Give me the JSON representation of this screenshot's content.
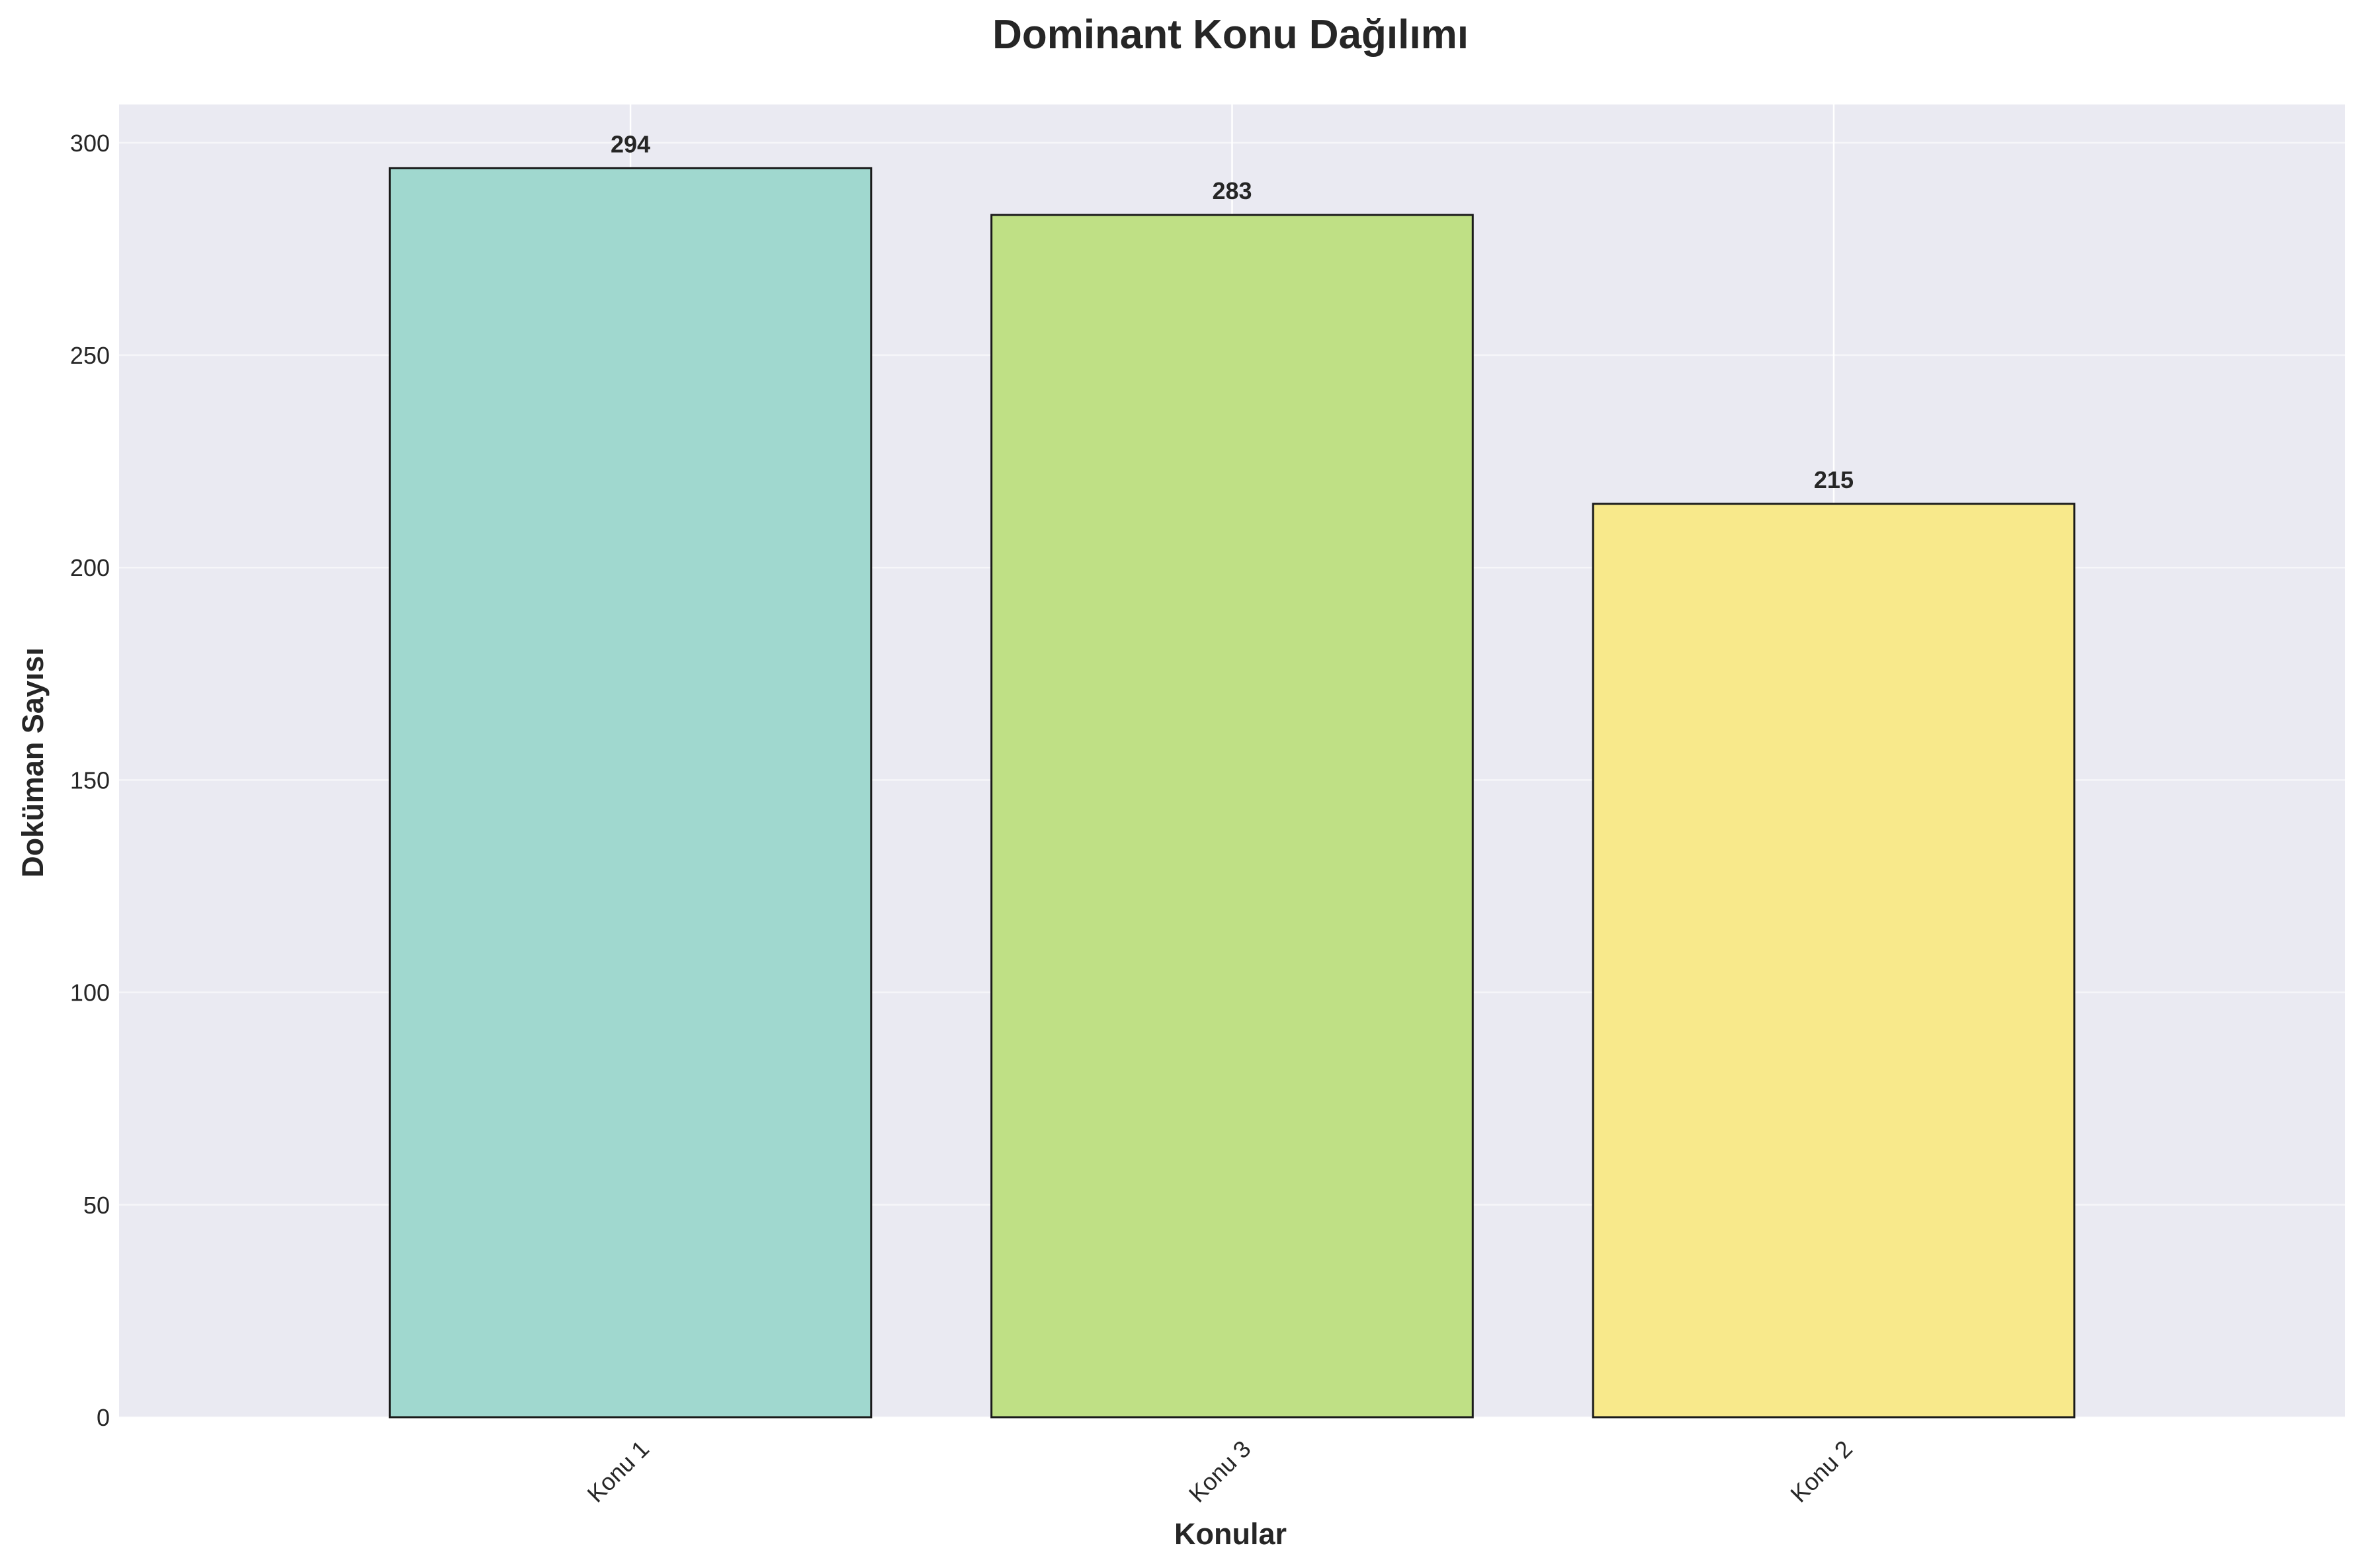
{
  "chart_data": {
    "type": "bar",
    "title": "Dominant Konu Dağılımı",
    "xlabel": "Konular",
    "ylabel": "Doküman Sayısı",
    "categories": [
      "Konu 1",
      "Konu 3",
      "Konu 2"
    ],
    "values": [
      294,
      283,
      215
    ],
    "value_labels": [
      "294",
      "283",
      "215"
    ],
    "ylim": [
      0,
      309
    ],
    "yticks": [
      0,
      50,
      100,
      150,
      200,
      250,
      300
    ],
    "ytick_labels": [
      "0",
      "50",
      "100",
      "150",
      "200",
      "250",
      "300"
    ],
    "grid": true,
    "legend": "none",
    "x_tick_rotation": 45
  },
  "colors": {
    "plot_background": "#EAEAF2",
    "grid": "#FFFFFF",
    "bar_edge": "#1a1a1a",
    "bars": [
      "#A0D8CF",
      "#BFE085",
      "#F8E98B"
    ]
  }
}
